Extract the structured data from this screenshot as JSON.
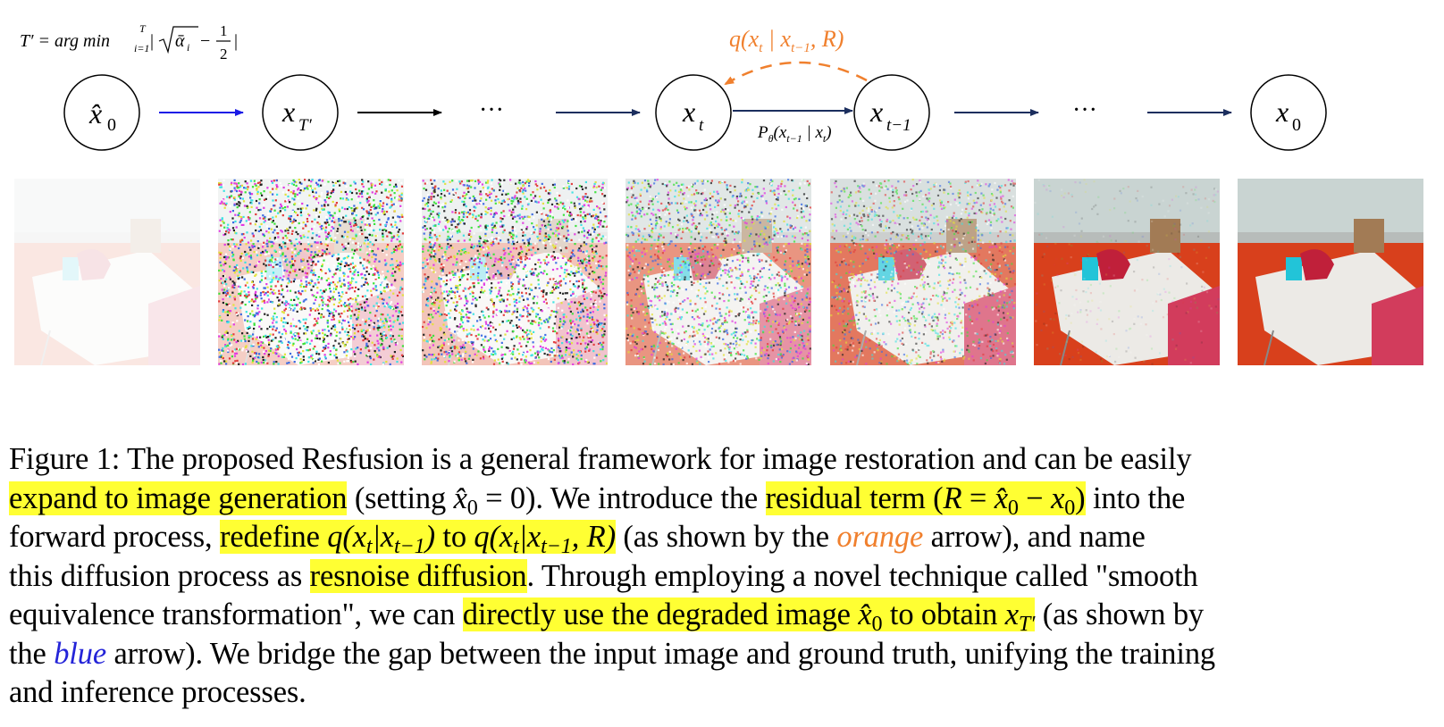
{
  "diagram": {
    "formula": {
      "lhs": "T′ = arg min",
      "sup": "T",
      "sub": "i=1",
      "bar_open": "|",
      "sqrt_body": "ᾱ",
      "sqrt_sub": "i",
      "minus": "−",
      "frac_num": "1",
      "frac_den": "2",
      "bar_close": "|"
    },
    "nodes": [
      {
        "main": "x̂",
        "sub": "0"
      },
      {
        "main": "x",
        "sub": "T′"
      },
      {
        "main": "x",
        "sub": "t"
      },
      {
        "main": "x",
        "sub": "t−1"
      },
      {
        "main": "x",
        "sub": "0"
      }
    ],
    "ellipses": [
      "···",
      "···"
    ],
    "forward_label": {
      "head": "q(x",
      "s1": "t",
      "mid": " | x",
      "s2": "t−1",
      "tail": ", R)"
    },
    "reverse_label": {
      "head": "P",
      "theta": "θ",
      "open": "(x",
      "s1": "t−1",
      "mid": " | x",
      "s2": "t",
      "close": ")"
    },
    "colors": {
      "blue_arrow": "#1a1ae6",
      "black_arrow": "#000000",
      "navy_arrow": "#1b2e5e",
      "orange_arrow": "#f0802e"
    }
  },
  "caption": {
    "l1": "Figure 1: The proposed Resfusion is a general framework for image restoration and can be easily",
    "l2_hl": "expand to image generation",
    "l2_a": " (setting ",
    "l2_m1": "x̂",
    "l2_m1s": "0",
    "l2_m2": " = 0",
    "l2_b": "). We introduce the ",
    "l2_hl2a": "residual term (",
    "l2_hl2m": "R",
    "l2_hl2n": " = ",
    "l2_hl2o": "x̂",
    "l2_hl2os": "0",
    "l2_hl2p": " − ",
    "l2_hl2q": "x",
    "l2_hl2qs": "0",
    "l2_hl2r": ")",
    "l2_c": " into the",
    "l3_a": "forward process, ",
    "l3_hl1": "redefine ",
    "l3_q1": "q(x",
    "l3_q1s": "t",
    "l3_q1b": "|x",
    "l3_q1bs": "t−1",
    "l3_q1c": ")",
    "l3_to": " to ",
    "l3_q2": "q(x",
    "l3_q2s": "t",
    "l3_q2b": "|x",
    "l3_q2bs": "t−1",
    "l3_q2c": ", R)",
    "l3_b": " (as shown by the ",
    "l3_orange": "orange",
    "l3_c": " arrow), and name",
    "l4_a": "this diffusion process as ",
    "l4_hl": "resnoise diffusion",
    "l4_b": ". Through employing a novel technique called \"smooth",
    "l5_a": "equivalence transformation\", we can ",
    "l5_hl": "directly use the degraded image ",
    "l5_m": "x̂",
    "l5_ms": "0",
    "l5_hl2": " to obtain ",
    "l5_m2": "x",
    "l5_m2s": "T′",
    "l5_b": " (as shown by",
    "l6_a": "the ",
    "l6_blue": "blue",
    "l6_b": " arrow). We bridge the gap between the input image and ground truth, unifying the training",
    "l7": "and inference processes."
  }
}
